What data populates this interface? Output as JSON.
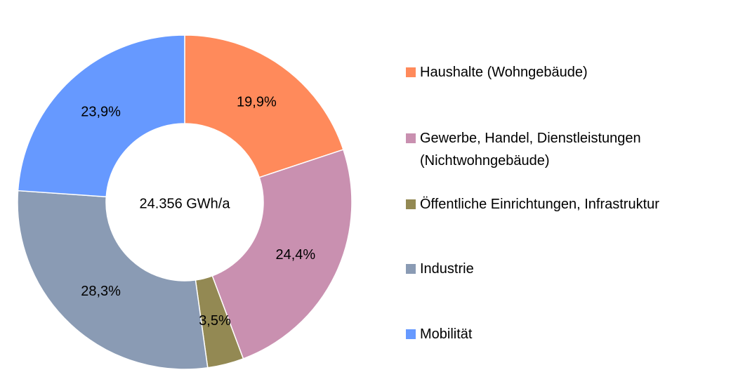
{
  "chart_data": {
    "type": "donut",
    "center_label": "24.356 GWh/a",
    "categories": [
      "Haushalte (Wohngebäude)",
      "Gewerbe, Handel, Dienstleistungen (Nichtwohngebäude)",
      "Öffentliche Einrichtungen, Infrastruktur",
      "Industrie",
      "Mobilität"
    ],
    "values": [
      19.9,
      24.4,
      3.5,
      28.3,
      23.9
    ],
    "value_labels": [
      "19,9%",
      "24,4%",
      "3,5%",
      "28,3%",
      "23,9%"
    ],
    "colors": [
      "#ff8a5b",
      "#c990b0",
      "#938953",
      "#8a9bb4",
      "#6699ff"
    ],
    "legend": "right"
  }
}
